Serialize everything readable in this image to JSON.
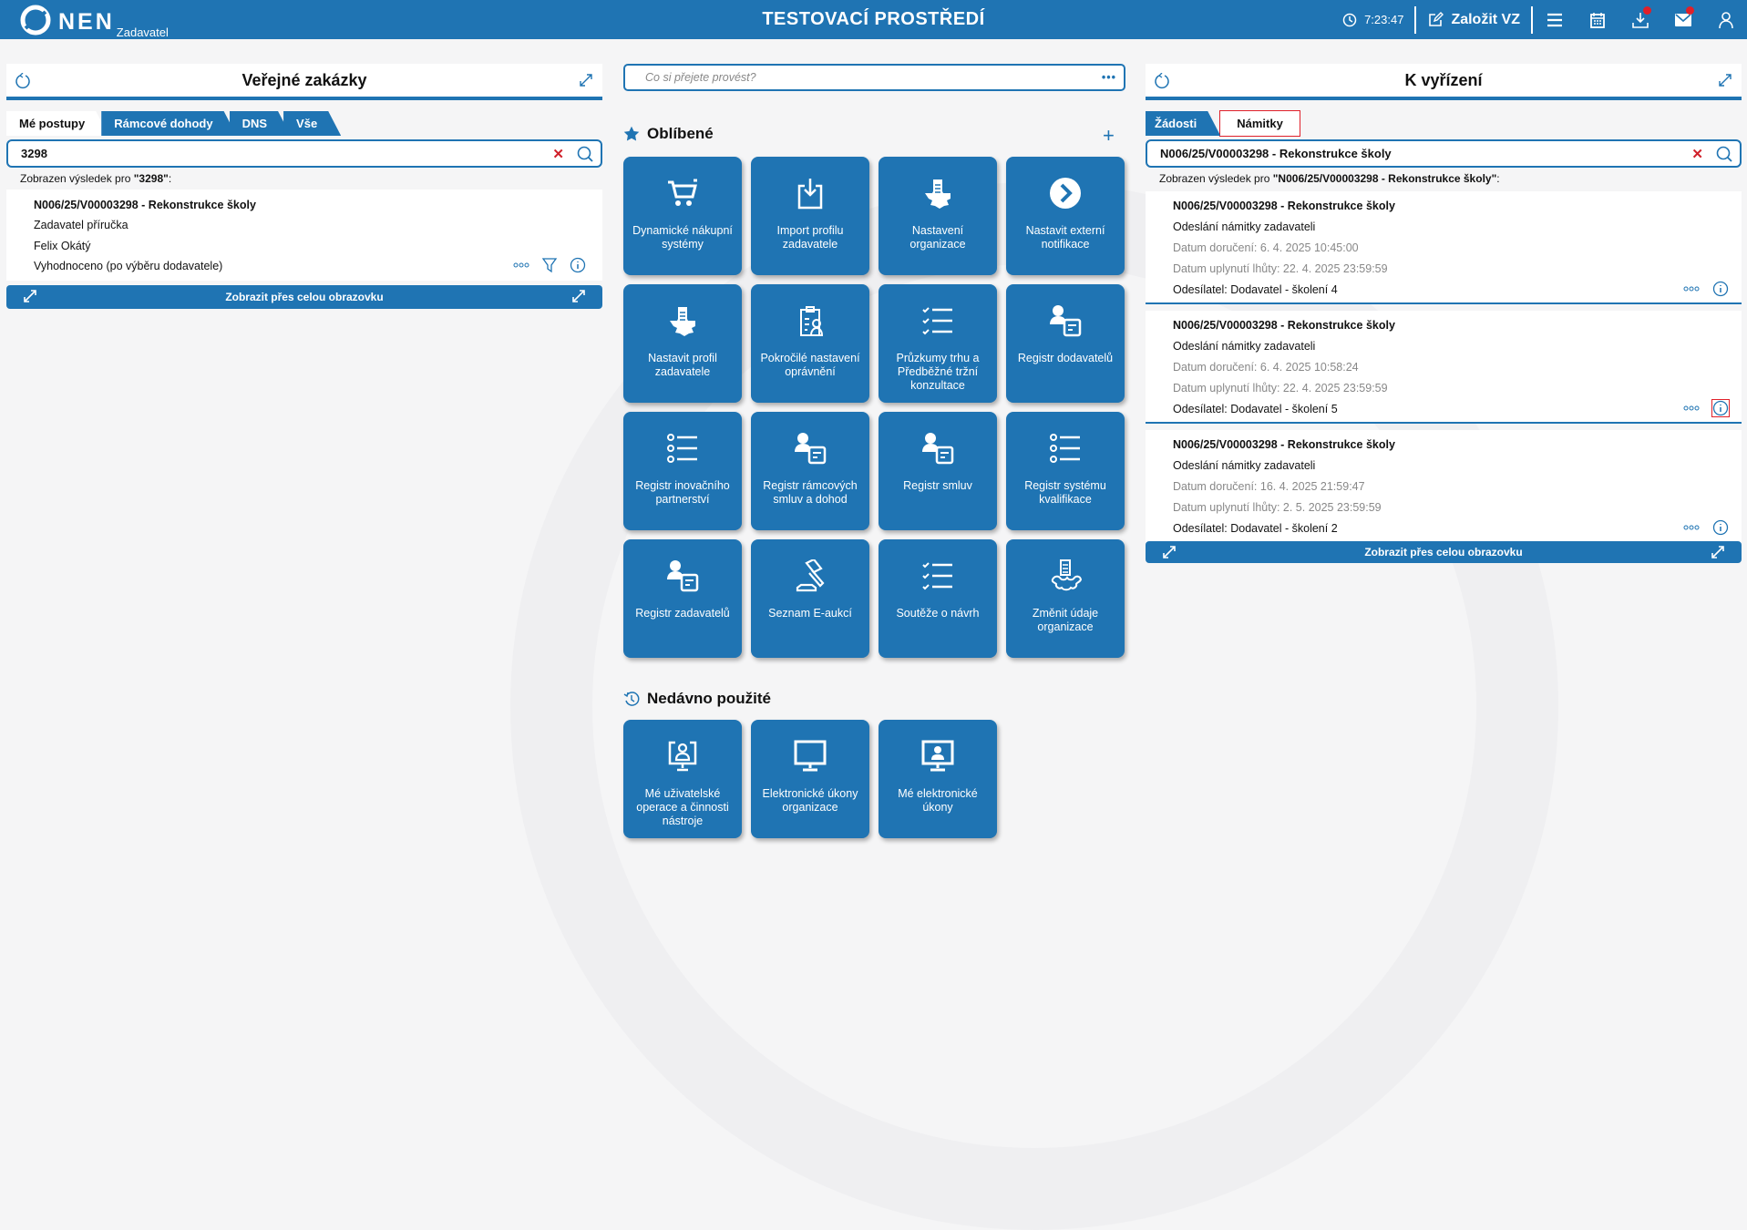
{
  "header": {
    "logo": "NEN",
    "logo_sub": "Zadavatel",
    "env_title": "TESTOVACÍ PROSTŘEDÍ",
    "time": "7:23:47",
    "new_vz": "Založit VZ",
    "badge_color": "#e0202a",
    "brand_color": "#1f74b3"
  },
  "left": {
    "title": "Veřejné zakázky",
    "tabs": [
      "Mé postupy",
      "Rámcové dohody",
      "DNS",
      "Vše"
    ],
    "active_tab": "Mé postupy",
    "search_value": "3298",
    "result_prefix": "Zobrazen výsledek pro ",
    "result_query": "\"3298\"",
    "result_suffix": ":",
    "item": {
      "title": "N006/25/V00003298 - Rekonstrukce školy",
      "line1": "Zadavatel příručka",
      "line2": "Felix Okátý",
      "line3": "Vyhodnoceno (po výběru dodavatele)"
    },
    "fullscreen": "Zobrazit přes celou obrazovku"
  },
  "middle": {
    "search_placeholder": "Co si přejete provést?",
    "favorites_title": "Oblíbené",
    "recent_title": "Nedávno použité",
    "favorites": [
      {
        "label": "Dynamické nákupní systémy",
        "icon": "cart-icon"
      },
      {
        "label": "Import profilu zadavatele",
        "icon": "import-icon"
      },
      {
        "label": "Nastavení organizace",
        "icon": "organization-gear-icon"
      },
      {
        "label": "Nastavit externí notifikace",
        "icon": "chevron-circle-icon"
      },
      {
        "label": "Nastavit profil zadavatele",
        "icon": "organization-gear-icon"
      },
      {
        "label": "Pokročilé nastavení oprávnění",
        "icon": "clipboard-user-icon"
      },
      {
        "label": "Průzkumy trhu a Předběžné tržní konzultace",
        "icon": "checklist-icon"
      },
      {
        "label": "Registr dodavatelů",
        "icon": "user-card-icon"
      },
      {
        "label": "Registr inovačního partnerství",
        "icon": "list-icon"
      },
      {
        "label": "Registr rámcových smluv a dohod",
        "icon": "user-card-icon"
      },
      {
        "label": "Registr smluv",
        "icon": "user-card-icon"
      },
      {
        "label": "Registr systému kvalifikace",
        "icon": "list-icon"
      },
      {
        "label": "Registr zadavatelů",
        "icon": "user-card-icon"
      },
      {
        "label": "Seznam E-aukcí",
        "icon": "gavel-icon"
      },
      {
        "label": "Soutěže o návrh",
        "icon": "checklist-icon"
      },
      {
        "label": "Změnit údaje organizace",
        "icon": "organization-edit-icon"
      }
    ],
    "recent": [
      {
        "label": "Mé uživatelské operace a činnosti nástroje",
        "icon": "monitor-user-frame-icon"
      },
      {
        "label": "Elektronické úkony organizace",
        "icon": "monitor-icon"
      },
      {
        "label": "Mé elektronické úkony",
        "icon": "monitor-user-icon"
      }
    ]
  },
  "right": {
    "title": "K vyřízení",
    "tabs": [
      "Žádosti",
      "Námitky"
    ],
    "active_tab": "Námitky",
    "search_value": "N006/25/V00003298 - Rekonstrukce školy",
    "result_prefix": "Zobrazen výsledek pro ",
    "result_query": "\"N006/25/V00003298 - Rekonstrukce školy\"",
    "result_suffix": ":",
    "items": [
      {
        "title": "N006/25/V00003298 - Rekonstrukce školy",
        "type": "Odeslání námitky zadavateli",
        "delivered": "Datum doručení: 6. 4. 2025 10:45:00",
        "deadline": "Datum uplynutí lhůty: 22. 4. 2025 23:59:59",
        "sender": "Odesílatel: Dodavatel - školení 4"
      },
      {
        "title": "N006/25/V00003298 - Rekonstrukce školy",
        "type": "Odeslání námitky zadavateli",
        "delivered": "Datum doručení: 6. 4. 2025 10:58:24",
        "deadline": "Datum uplynutí lhůty: 22. 4. 2025 23:59:59",
        "sender": "Odesílatel: Dodavatel - školení 5"
      },
      {
        "title": "N006/25/V00003298 - Rekonstrukce školy",
        "type": "Odeslání námitky zadavateli",
        "delivered": "Datum doručení: 16. 4. 2025 21:59:47",
        "deadline": "Datum uplynutí lhůty: 2. 5. 2025 23:59:59",
        "sender": "Odesílatel: Dodavatel - školení 2"
      }
    ],
    "fullscreen": "Zobrazit přes celou obrazovku"
  }
}
